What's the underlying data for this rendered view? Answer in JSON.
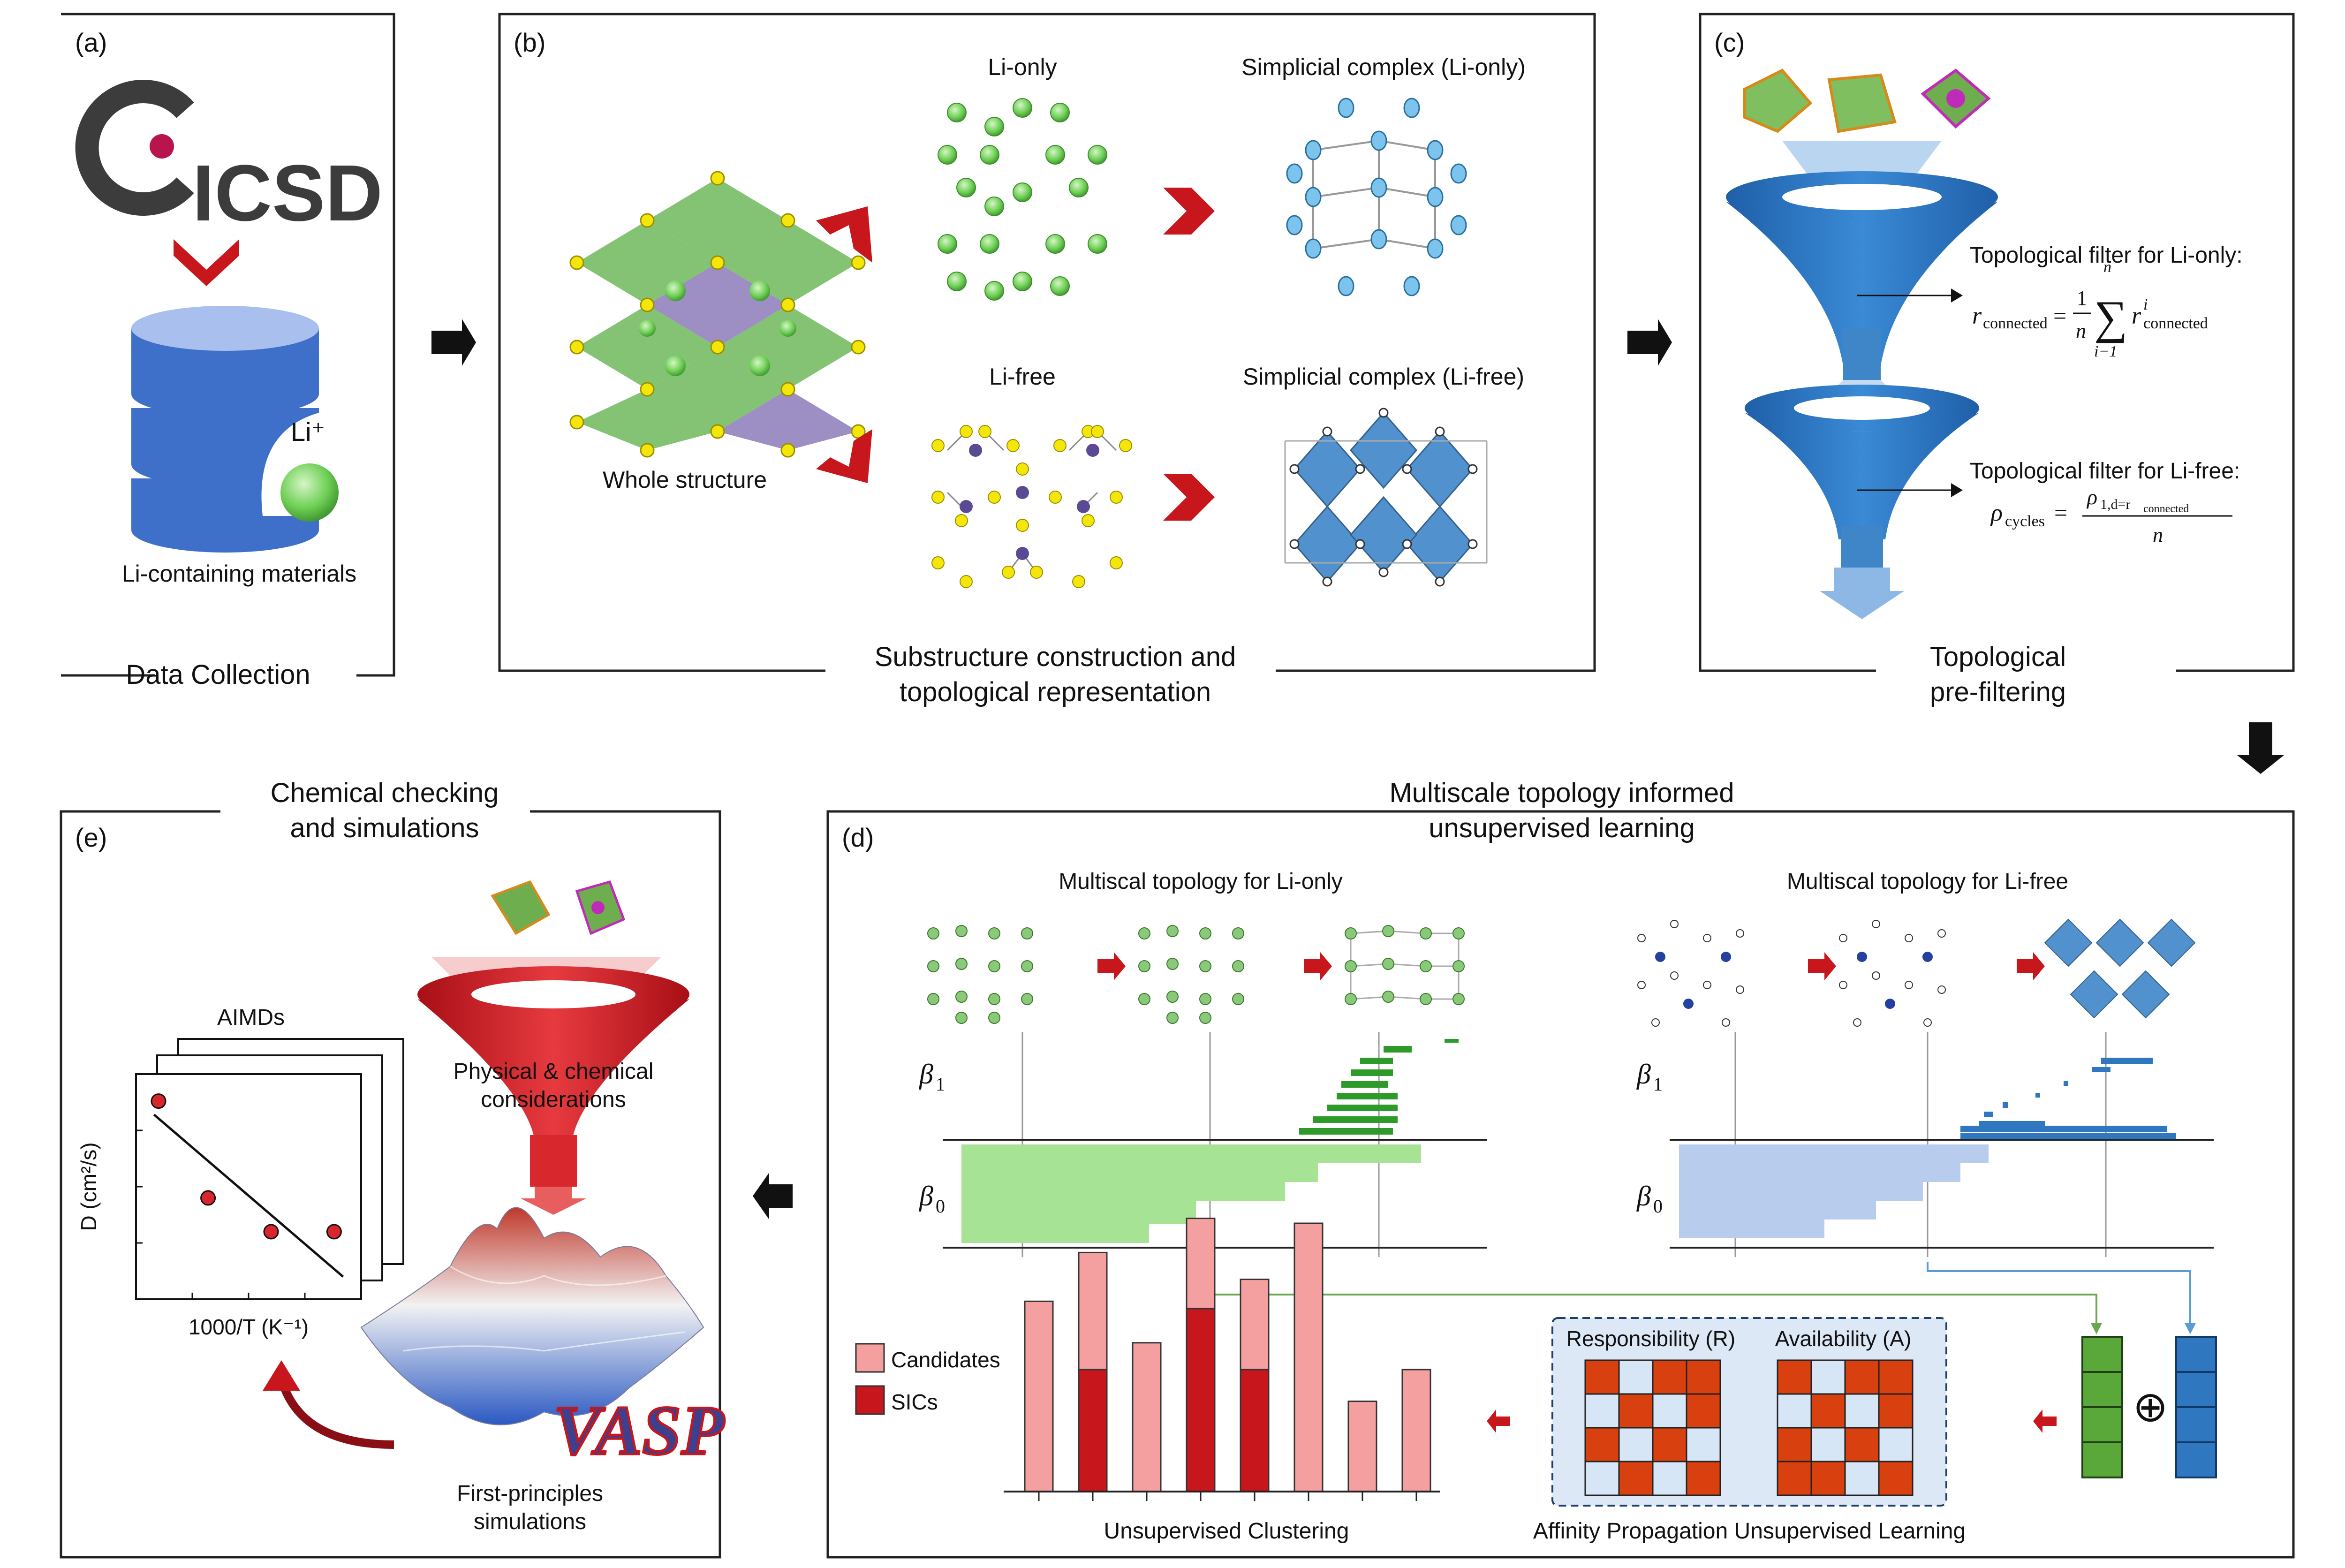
{
  "panels": {
    "a": {
      "tag": "(a)",
      "caption": "Data Collection",
      "logo": "ICSD",
      "ion_label": "Li⁺",
      "db_label": "Li-containing materials"
    },
    "b": {
      "tag": "(b)",
      "caption_line1": "Substructure construction and",
      "caption_line2": "topological representation",
      "whole_structure": "Whole structure",
      "li_only": "Li-only",
      "li_free": "Li-free",
      "simplicial_li_only": "Simplicial complex (Li-only)",
      "simplicial_li_free": "Simplicial complex (Li-free)"
    },
    "c": {
      "tag": "(c)",
      "caption_line1": "Topological",
      "caption_line2": "pre-filtering",
      "filter1_title": "Topological filter for Li-only:",
      "filter2_title": "Topological filter for Li-free:",
      "r_connected": "r",
      "r_sub": "connected",
      "rho": "ρ",
      "rho_sub": "cycles",
      "frac1": "1",
      "n": "n",
      "i_eq_1": "i−1",
      "sum": "∑",
      "r_sup_i": "i",
      "rho_num": "ρ",
      "rho_num_sub": "1,d=r",
      "rho_num_sub2": "connected"
    },
    "d": {
      "tag": "(d)",
      "caption_line1": "Multiscale topology informed",
      "caption_line2": "unsupervised learning",
      "li_only_title": "Multiscal topology for Li-only",
      "li_free_title": "Multiscal topology for Li-free",
      "beta1": "β",
      "beta1_sub": "1",
      "beta0": "β",
      "beta0_sub": "0",
      "responsibility": "Responsibility (R)",
      "availability": "Availability (A)",
      "ap_label": "Affinity Propagation Unsupervised Learning",
      "clustering_label": "Unsupervised Clustering",
      "legend_candidates": "Candidates",
      "legend_sics": "SICs",
      "oplus": "⊕"
    },
    "e": {
      "tag": "(e)",
      "caption_line1": "Chemical checking",
      "caption_line2": "and simulations",
      "aimds": "AIMDs",
      "y_axis": "D (cm²/s)",
      "x_axis": "1000/T (K⁻¹)",
      "funnel_line1": "Physical & chemical",
      "funnel_line2": "considerations",
      "fp_line1": "First-principles",
      "fp_line2": "simulations",
      "vasp": "VASP"
    }
  },
  "colors": {
    "green": "#5aa845",
    "light_green": "#9ee08f",
    "blue": "#2f78c0",
    "light_blue": "#b8cdee",
    "red": "#c8161d",
    "pink": "#f5a0a0",
    "dark_red": "#c8161d"
  },
  "clustering_chart": {
    "type": "bar",
    "series": [
      {
        "values": [
          0.78,
          0.98,
          0.61,
          1.12,
          0.87,
          1.1,
          0.37,
          0.5
        ]
      },
      {
        "values": [
          0,
          0.5,
          0,
          0.75,
          0.5,
          0,
          0,
          0
        ]
      }
    ]
  },
  "aimd_chart": {
    "type": "scatter",
    "points": [
      [
        0.1,
        0.88
      ],
      [
        0.32,
        0.45
      ],
      [
        0.6,
        0.3
      ],
      [
        0.88,
        0.3
      ]
    ]
  }
}
